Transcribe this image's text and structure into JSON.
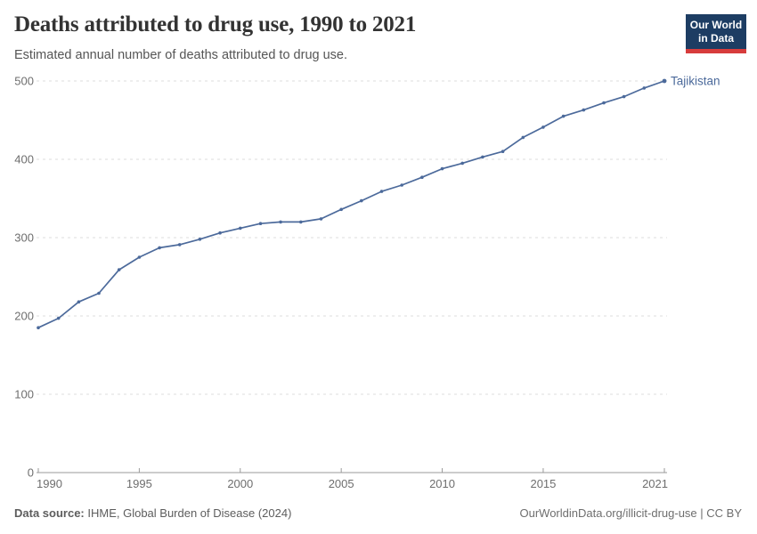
{
  "header": {
    "title": "Deaths attributed to drug use, 1990 to 2021",
    "subtitle": "Estimated annual number of deaths attributed to drug use.",
    "logo": {
      "line1": "Our World",
      "line2": "in Data"
    }
  },
  "chart_data": {
    "type": "line",
    "title": "Deaths attributed to drug use, 1990 to 2021",
    "xlabel": "",
    "ylabel": "",
    "xlim": [
      1990,
      2021
    ],
    "ylim": [
      0,
      500
    ],
    "grid": "horizontal-dashed",
    "legend_position": "end-of-line-label",
    "xticks": [
      1990,
      1995,
      2000,
      2005,
      2010,
      2015,
      2021
    ],
    "yticks": [
      0,
      100,
      200,
      300,
      400,
      500
    ],
    "x": [
      1990,
      1991,
      1992,
      1993,
      1994,
      1995,
      1996,
      1997,
      1998,
      1999,
      2000,
      2001,
      2002,
      2003,
      2004,
      2005,
      2006,
      2007,
      2008,
      2009,
      2010,
      2011,
      2012,
      2013,
      2014,
      2015,
      2016,
      2017,
      2018,
      2019,
      2020,
      2021
    ],
    "series": [
      {
        "name": "Tajikistan",
        "color": "#4C6A9B",
        "values": [
          185,
          197,
          218,
          229,
          259,
          275,
          287,
          291,
          298,
          306,
          312,
          318,
          320,
          320,
          324,
          336,
          347,
          359,
          367,
          377,
          388,
          395,
          403,
          410,
          428,
          441,
          455,
          463,
          472,
          480,
          491,
          500
        ]
      }
    ]
  },
  "footer": {
    "source_label": "Data source:",
    "source_text": " IHME, Global Burden of Disease (2024)",
    "credit": "OurWorldinData.org/illicit-drug-use | CC BY"
  },
  "colors": {
    "line": "#4C6A9B",
    "entity_label": "#4C6A9B",
    "grid": "#dcdcdc",
    "axis": "#9a9a9a",
    "tick_text": "#6e6e6e",
    "title_text": "#333333",
    "subtitle_text": "#555555",
    "logo_bg": "#1d3d63",
    "logo_bar": "#d73c3c"
  }
}
